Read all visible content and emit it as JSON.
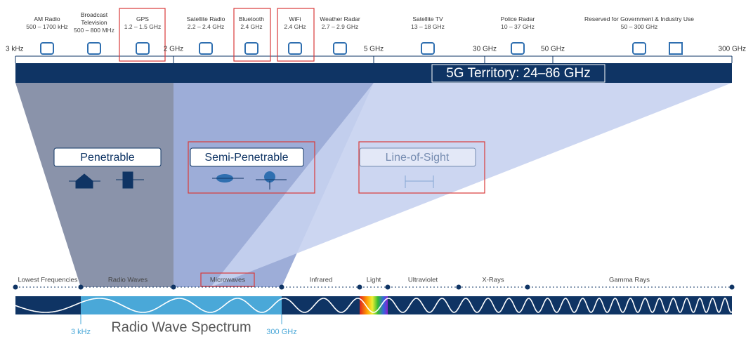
{
  "bands": [
    {
      "name": "AM Radio",
      "range": "500 – 1700 kHz"
    },
    {
      "name": "Broadcast Television",
      "range": "500 – 800 MHz"
    },
    {
      "name": "GPS",
      "range": "1.2 – 1.5 GHz"
    },
    {
      "name": "Satellite Radio",
      "range": "2.2 – 2.4 GHz"
    },
    {
      "name": "Bluetooth",
      "range": "2.4 GHz"
    },
    {
      "name": "WiFi",
      "range": "2.4 GHz"
    },
    {
      "name": "Weather Radar",
      "range": "2.7 – 2.9 GHz"
    },
    {
      "name": "Satellite TV",
      "range": "13 – 18 GHz"
    },
    {
      "name": "Police Radar",
      "range": "10 – 37 GHz"
    },
    {
      "name": "Reserved for Government & Industry Use",
      "range": "50 – 300 GHz"
    }
  ],
  "scale": [
    "3 kHz",
    "2 GHz",
    "5 GHz",
    "30 GHz",
    "50 GHz",
    "300 GHz"
  ],
  "territory": "5G Territory: 24–86 GHz",
  "zones": [
    "Penetrable",
    "Semi-Penetrable",
    "Line-of-Sight"
  ],
  "spectrum": {
    "regions": [
      "Lowest Frequencies",
      "Radio Waves",
      "Microwaves",
      "Infrared",
      "Light",
      "Ultraviolet",
      "X-Rays",
      "Gamma Rays"
    ],
    "start": "3 kHz",
    "end": "300 GHz",
    "title": "Radio Wave Spectrum"
  }
}
